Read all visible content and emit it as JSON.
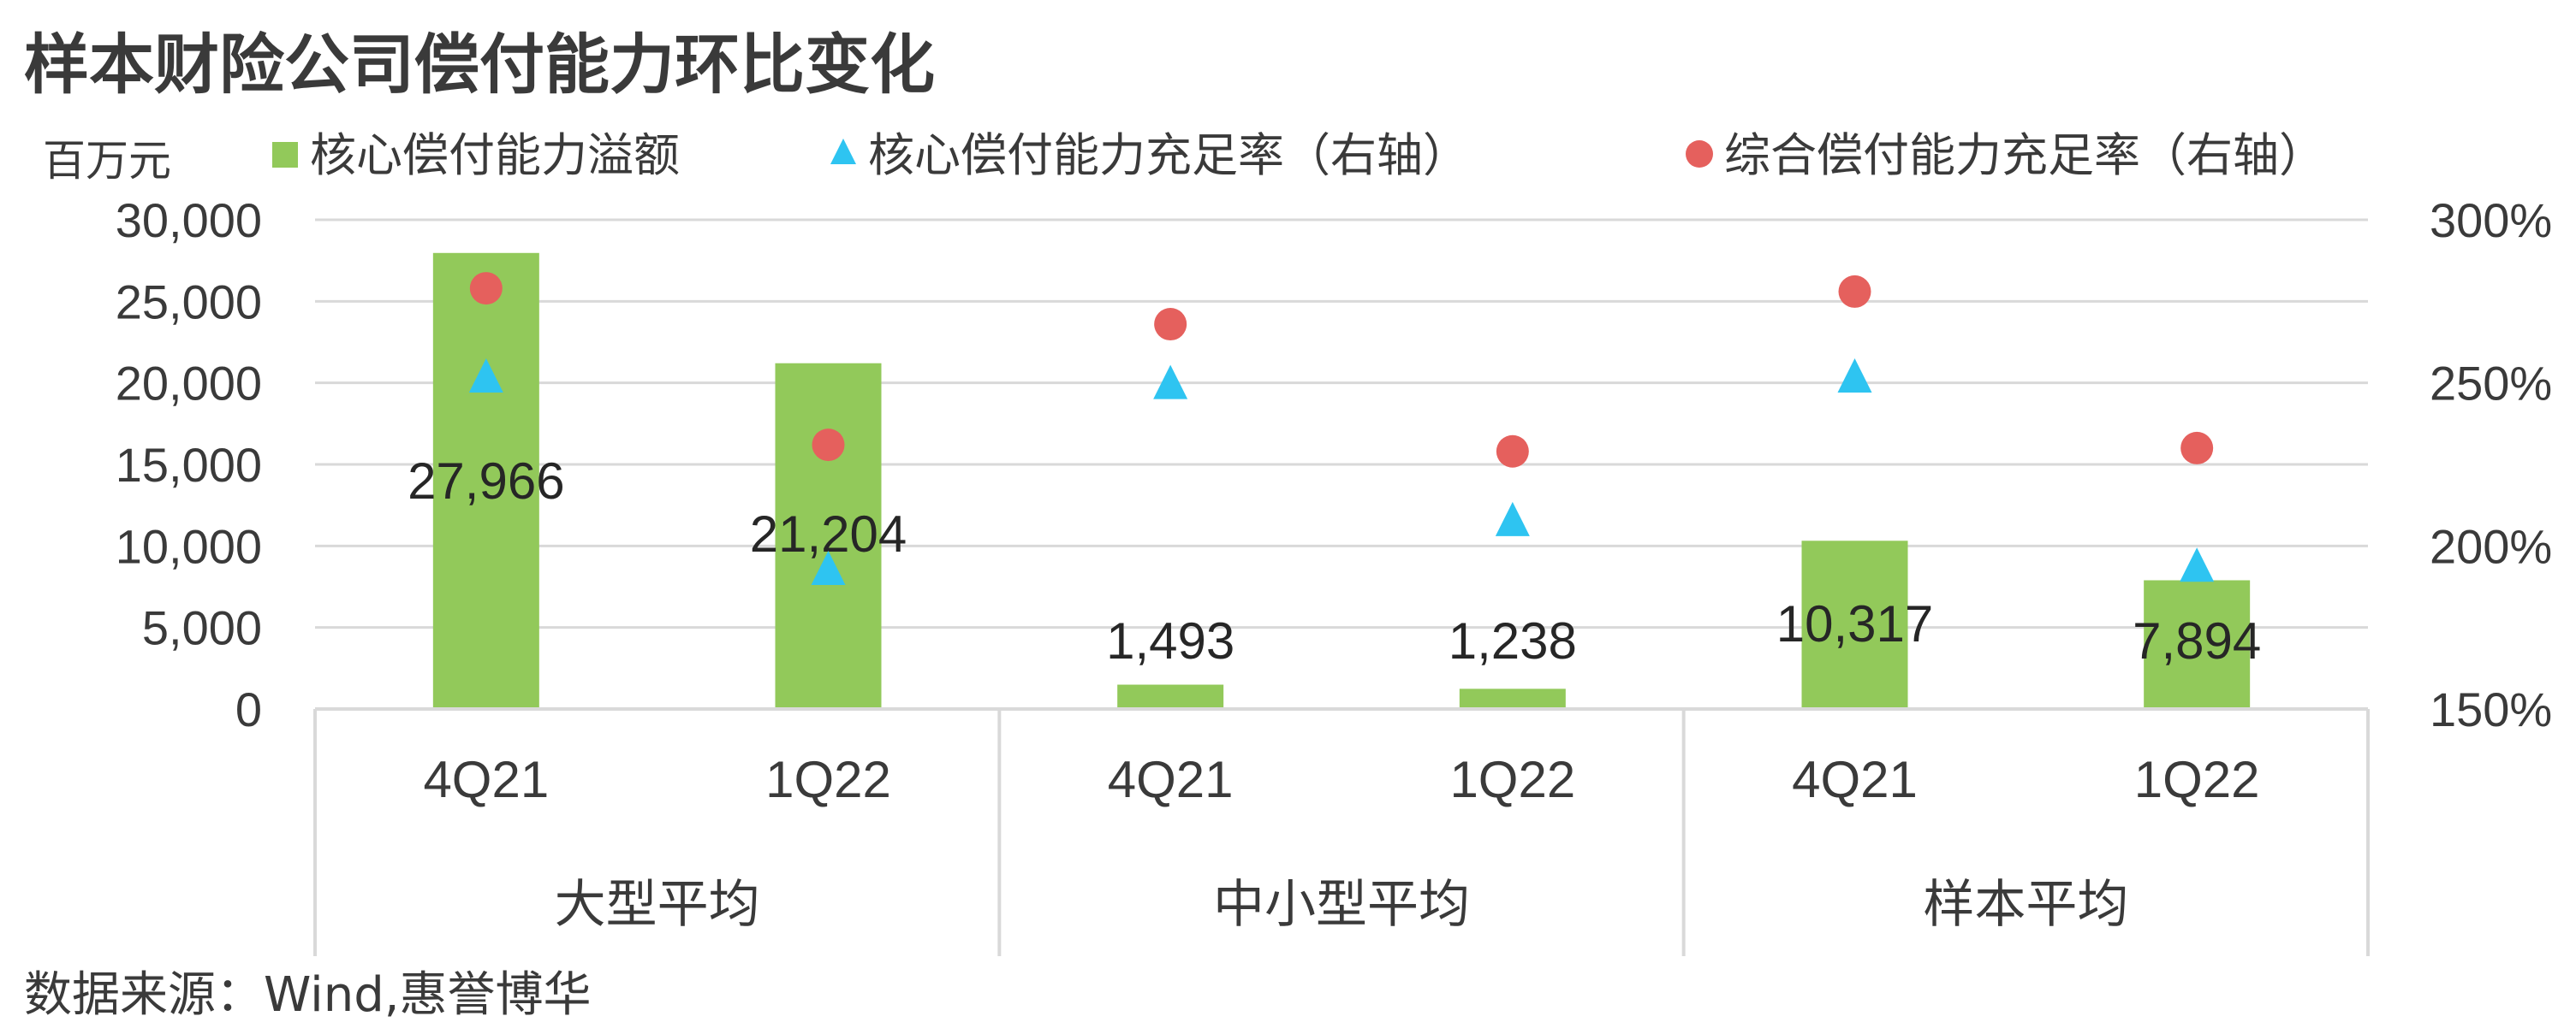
{
  "header": {
    "title": "样本财险公司偿付能力环比变化",
    "source": "数据来源：Wind,惠誉博华"
  },
  "chart_data": {
    "type": "bar",
    "left_axis_unit": "百万元",
    "groups": [
      "大型平均",
      "中小型平均",
      "样本平均"
    ],
    "categories": [
      "4Q21",
      "1Q22",
      "4Q21",
      "1Q22",
      "4Q21",
      "1Q22"
    ],
    "category_group": [
      0,
      0,
      1,
      1,
      2,
      2
    ],
    "left_ylim": [
      0,
      30000
    ],
    "left_ticks": [
      0,
      5000,
      10000,
      15000,
      20000,
      25000,
      30000
    ],
    "left_tick_labels": [
      "0",
      "5,000",
      "10,000",
      "15,000",
      "20,000",
      "25,000",
      "30,000"
    ],
    "right_ylim": [
      150,
      300
    ],
    "right_ticks": [
      150,
      200,
      250,
      300
    ],
    "right_tick_labels": [
      "150%",
      "200%",
      "250%",
      "300%"
    ],
    "grid": true,
    "legend_position": "top",
    "series": [
      {
        "name": "核心偿付能力溢额",
        "kind": "bar",
        "axis": "left",
        "color": "#92c95a",
        "values": [
          27966,
          21204,
          1493,
          1238,
          10317,
          7894
        ],
        "labels": [
          "27,966",
          "21,204",
          "1,493",
          "1,238",
          "10,317",
          "7,894"
        ]
      },
      {
        "name": "核心偿付能力充足率（右轴）",
        "kind": "triangle",
        "axis": "right",
        "color": "#2ec4f1",
        "values": [
          252,
          193,
          250,
          208,
          252,
          194
        ]
      },
      {
        "name": "综合偿付能力充足率（右轴）",
        "kind": "circle",
        "axis": "right",
        "color": "#e5605d",
        "values": [
          279,
          231,
          268,
          229,
          278,
          230
        ]
      }
    ]
  }
}
